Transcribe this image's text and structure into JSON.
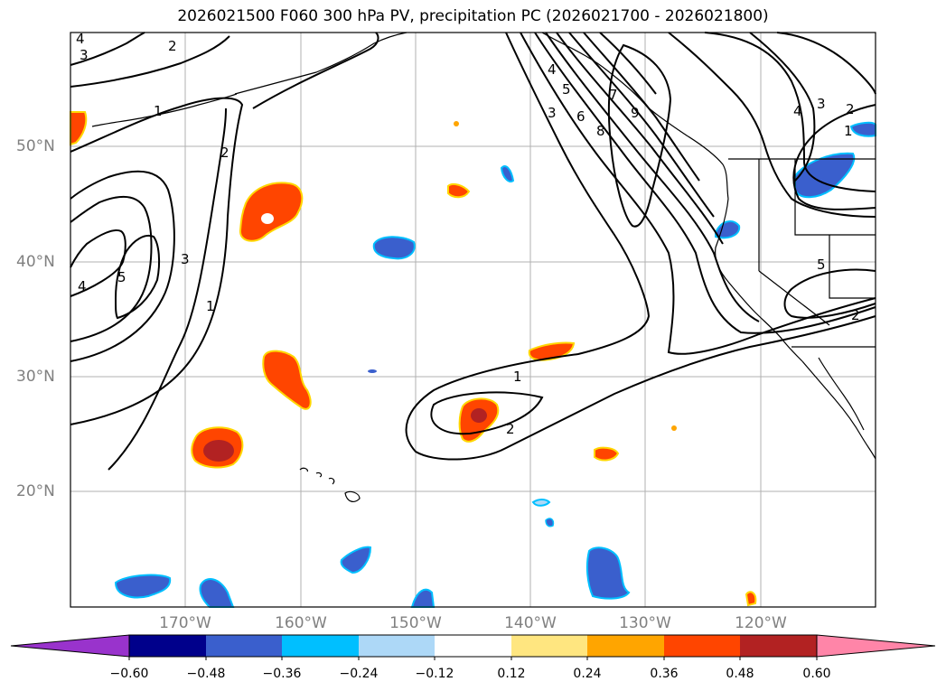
{
  "title": "2026021500 F060 300 hPa PV, precipitation PC (2026021700 - 2026021800)",
  "lat_labels": [
    "50°N",
    "40°N",
    "30°N",
    "20°N"
  ],
  "lon_labels": [
    "170°W",
    "160°W",
    "150°W",
    "140°W",
    "130°W",
    "120°W"
  ],
  "colorbar": {
    "tick_labels": [
      "−0.60",
      "−0.48",
      "−0.36",
      "−0.24",
      "−0.12",
      "0.12",
      "0.24",
      "0.36",
      "0.48",
      "0.60"
    ],
    "colors": [
      "#9933cc",
      "#00008b",
      "#3a5fcd",
      "#00bfff",
      "#add8f7",
      "#ffffff",
      "#ffe680",
      "#ffa500",
      "#ff4500",
      "#b22222",
      "#ff85a8"
    ]
  },
  "contour_labels": [
    "3",
    "2",
    "4",
    "1",
    "2",
    "5",
    "3",
    "1",
    "4",
    "4",
    "5",
    "6",
    "3",
    "7",
    "8",
    "9",
    "4",
    "3",
    "2",
    "1",
    "5",
    "2",
    "1",
    "2"
  ],
  "colors": {
    "land_line": "#000000",
    "grid": "#b0b0b0",
    "contour": "#000000",
    "orange": "#ff4500",
    "darkred": "#b22222",
    "blue": "#3a5fcd",
    "cyan": "#00bfff",
    "yellow": "#ffd700"
  }
}
